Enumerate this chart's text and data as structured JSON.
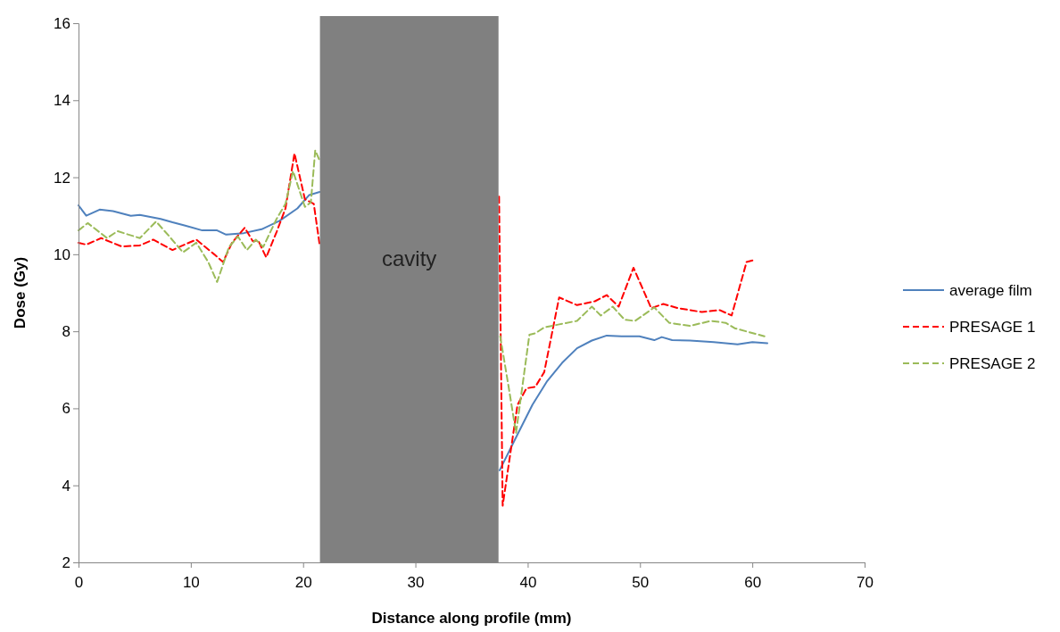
{
  "chart_data": {
    "type": "line",
    "xlabel": "Distance along profile (mm)",
    "ylabel": "Dose (Gy)",
    "xlim": [
      0,
      70
    ],
    "xticks": [
      0,
      10,
      20,
      30,
      40,
      50,
      60,
      70
    ],
    "ylim": [
      2,
      16
    ],
    "yticks": [
      2,
      4,
      6,
      8,
      10,
      12,
      14,
      16
    ],
    "grid": false,
    "legend": "right",
    "marker": "none",
    "bands": [
      {
        "axis": "x",
        "from": 21.5,
        "to": 37.4,
        "label": "cavity",
        "color": "#808080"
      }
    ],
    "series": [
      {
        "name": "average film",
        "color": "#4f81bd",
        "line_style": "solid",
        "x": [
          0,
          0.69,
          1.88,
          3.07,
          4.66,
          5.46,
          7.31,
          8.37,
          9.43,
          11.02,
          12.34,
          13.14,
          14.72,
          16.31,
          17.9,
          19.49,
          20.55,
          21.48,
          29,
          37.5,
          39.09,
          40.42,
          41.74,
          43.06,
          44.39,
          45.71,
          47.04,
          48.36,
          49.95,
          51.27,
          51.94,
          52.86,
          54.45,
          56.57,
          58.69,
          60.01,
          61.34
        ],
        "values": [
          11.27,
          11.0,
          11.16,
          11.12,
          11.0,
          11.02,
          10.92,
          10.83,
          10.75,
          10.62,
          10.62,
          10.51,
          10.55,
          10.65,
          10.87,
          11.19,
          11.54,
          11.62,
          null,
          4.39,
          5.32,
          6.09,
          6.71,
          7.18,
          7.56,
          7.76,
          7.89,
          7.87,
          7.87,
          7.77,
          7.85,
          7.77,
          7.76,
          7.72,
          7.66,
          7.72,
          7.69
        ]
      },
      {
        "name": "PRESAGE 1",
        "color": "#ff0000",
        "line_style": "dashed",
        "x": [
          0,
          0.69,
          2.01,
          3.87,
          5.46,
          6.65,
          8.37,
          9.43,
          10.49,
          12.08,
          12.87,
          13.67,
          14.8,
          15.52,
          16.0,
          16.71,
          17.64,
          18.43,
          19.23,
          20.16,
          20.95,
          21.48,
          29,
          37.45,
          37.77,
          39.09,
          39.89,
          40.68,
          41.47,
          42.8,
          44.39,
          45.98,
          47.04,
          48.1,
          49.42,
          51.0,
          52.07,
          53.39,
          55.51,
          57.1,
          58.16,
          59.49,
          60.01
        ],
        "values": [
          10.3,
          10.25,
          10.42,
          10.2,
          10.23,
          10.38,
          10.11,
          10.25,
          10.38,
          10.0,
          9.8,
          10.3,
          10.69,
          10.34,
          10.36,
          9.92,
          10.58,
          11.19,
          12.62,
          11.43,
          11.31,
          10.23,
          null,
          11.5,
          3.47,
          6.09,
          6.52,
          6.56,
          6.94,
          8.88,
          8.68,
          8.78,
          8.94,
          8.64,
          9.65,
          8.6,
          8.71,
          8.6,
          8.5,
          8.55,
          8.41,
          9.8,
          9.84
        ]
      },
      {
        "name": "PRESAGE 2",
        "color": "#9bbb59",
        "line_style": "dashed",
        "x": [
          0,
          0.82,
          2.54,
          3.47,
          5.46,
          6.91,
          8.1,
          9.3,
          10.49,
          11.55,
          12.34,
          13.4,
          14.2,
          14.99,
          15.79,
          16.45,
          17.64,
          18.43,
          19.1,
          20.16,
          20.69,
          21.08,
          21.48,
          29,
          37.55,
          38.3,
          38.96,
          40.15,
          40.68,
          41.47,
          42.8,
          44.39,
          45.71,
          46.51,
          47.57,
          48.63,
          49.56,
          51.27,
          52.6,
          54.45,
          56.3,
          57.63,
          58.43,
          61.08
        ],
        "values": [
          10.62,
          10.81,
          10.42,
          10.6,
          10.42,
          10.85,
          10.46,
          10.05,
          10.3,
          9.8,
          9.28,
          10.19,
          10.46,
          10.11,
          10.38,
          10.19,
          10.92,
          11.31,
          12.16,
          11.23,
          11.35,
          12.7,
          12.43,
          null,
          7.87,
          6.56,
          5.36,
          7.91,
          7.95,
          8.1,
          8.18,
          8.27,
          8.64,
          8.41,
          8.64,
          8.3,
          8.27,
          8.62,
          8.22,
          8.14,
          8.27,
          8.22,
          8.08,
          7.87
        ]
      }
    ]
  }
}
